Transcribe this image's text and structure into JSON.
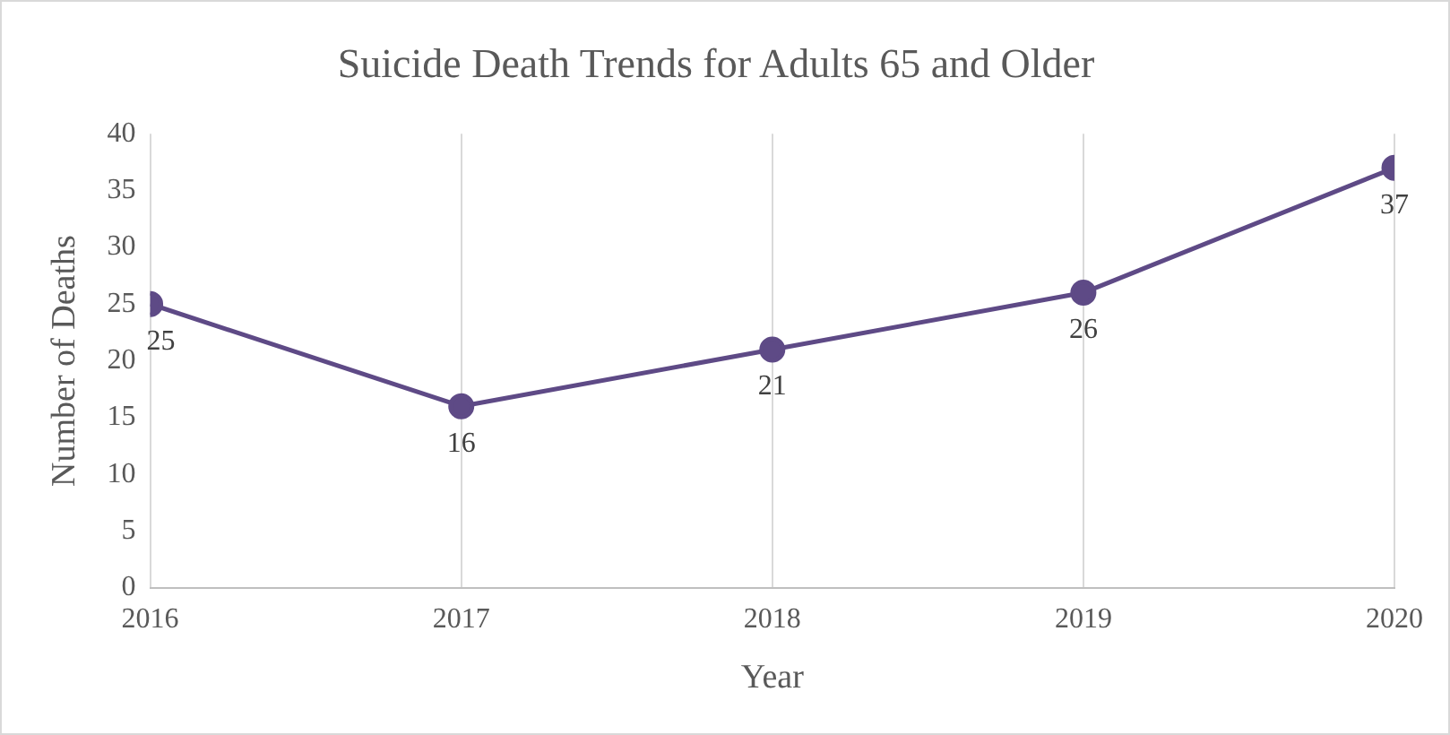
{
  "chart_data": {
    "type": "line",
    "title": "Suicide Death Trends for Adults 65 and Older",
    "xlabel": "Year",
    "ylabel": "Number of Deaths",
    "x": [
      2016,
      2017,
      2018,
      2019,
      2020
    ],
    "series": [
      {
        "color": "#5e4a86",
        "values": [
          25,
          16,
          21,
          26,
          37
        ]
      }
    ],
    "xlim": [
      2016,
      2020
    ],
    "xticks": [
      2016,
      2017,
      2018,
      2019,
      2020
    ],
    "ylim": [
      0,
      40
    ],
    "yticks": [
      0,
      5,
      10,
      15,
      20,
      25,
      30,
      35,
      40
    ],
    "grid": "x",
    "legend": false,
    "marker": "circle",
    "line_style": "solid",
    "data_labels": true
  }
}
